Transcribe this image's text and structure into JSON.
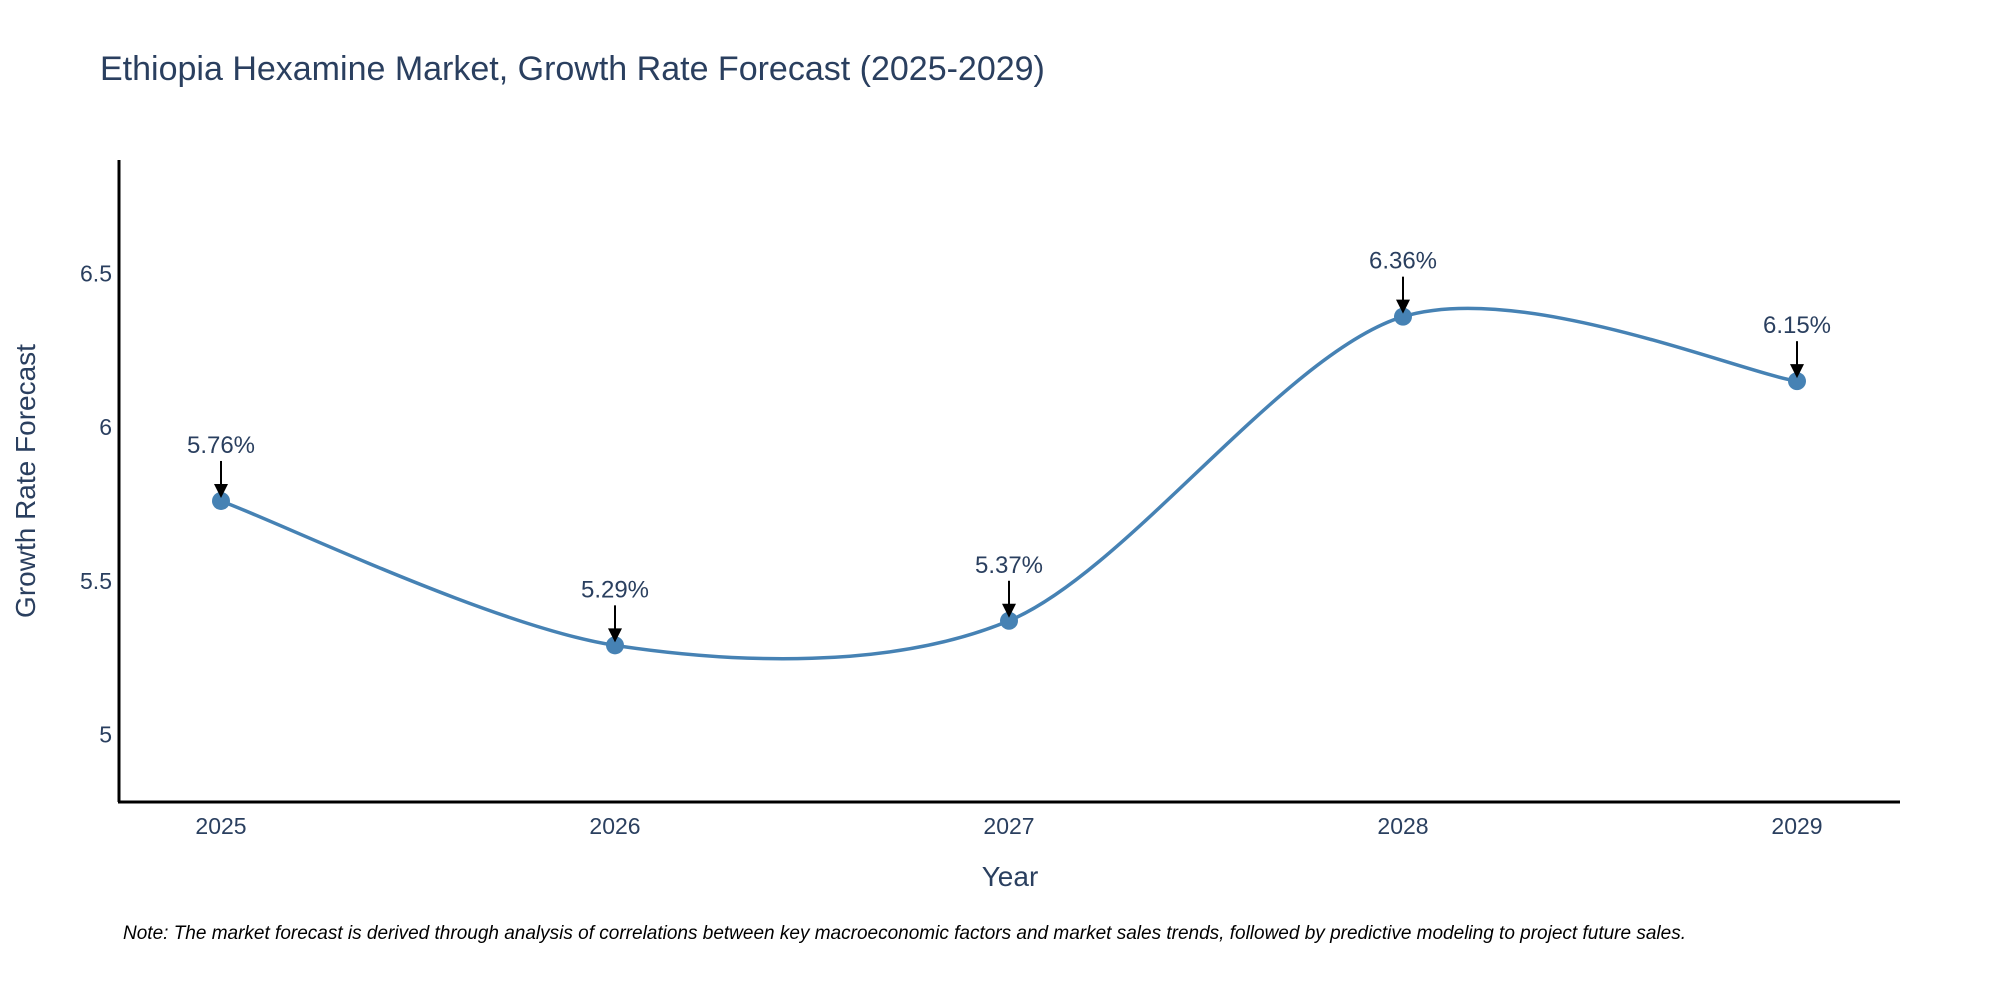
{
  "chart_data": {
    "type": "line",
    "title": "Ethiopia Hexamine Market, Growth Rate Forecast (2025-2029)",
    "xlabel": "Year",
    "ylabel": "Growth Rate Forecast",
    "categories": [
      "2025",
      "2026",
      "2027",
      "2028",
      "2029"
    ],
    "values": [
      5.76,
      5.29,
      5.37,
      6.36,
      6.15
    ],
    "data_labels": [
      "5.76%",
      "5.29%",
      "5.37%",
      "6.36%",
      "6.15%"
    ],
    "y_ticks": [
      5,
      5.5,
      6,
      6.5
    ],
    "y_tick_labels": [
      "5",
      "5.5",
      "6",
      "6.5"
    ],
    "ylim": [
      4.78,
      6.87
    ],
    "grid": false,
    "line_color": "#4682b4",
    "note": "Note: The market forecast is derived through analysis of correlations between key macroeconomic factors and market sales trends, followed by predictive modeling to project future sales."
  }
}
